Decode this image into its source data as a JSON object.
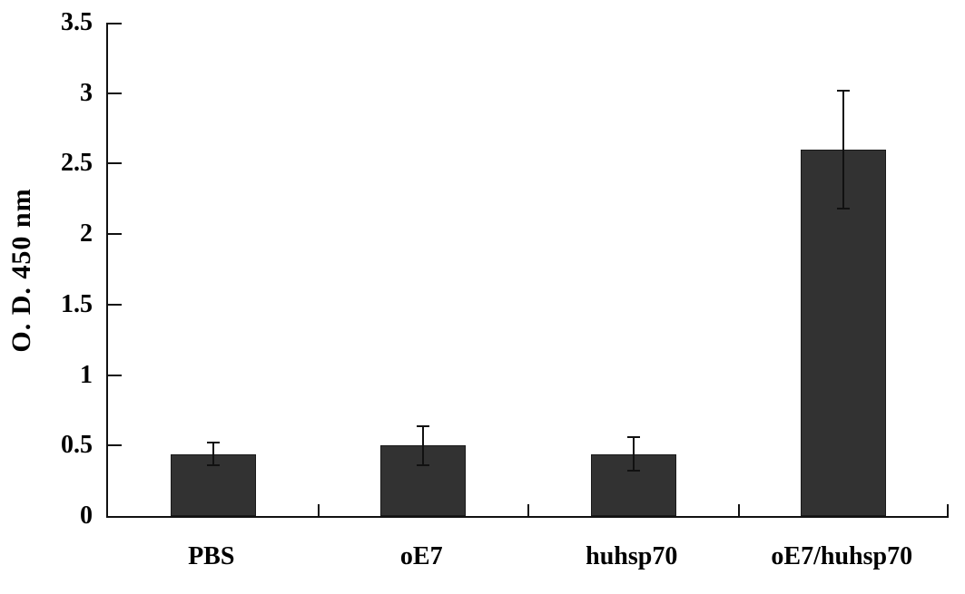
{
  "chart_data": {
    "type": "bar",
    "categories": [
      "PBS",
      "oE7",
      "huhsp70",
      "oE7/huhsp70"
    ],
    "values": [
      0.44,
      0.5,
      0.44,
      2.6
    ],
    "errors": [
      0.08,
      0.14,
      0.12,
      0.42
    ],
    "title": "",
    "xlabel": "",
    "ylabel": "O. D. 450 nm",
    "ylim": [
      0,
      3.5
    ],
    "ytick_step": 0.5,
    "ytick_labels": [
      "0",
      "0.5",
      "1",
      "1.5",
      "2",
      "2.5",
      "3",
      "3.5"
    ],
    "bar_color": "#323232",
    "axis_color": "#111111",
    "error_bar_color": "#111111",
    "background_color": "#ffffff",
    "grid": false,
    "legend": false
  }
}
